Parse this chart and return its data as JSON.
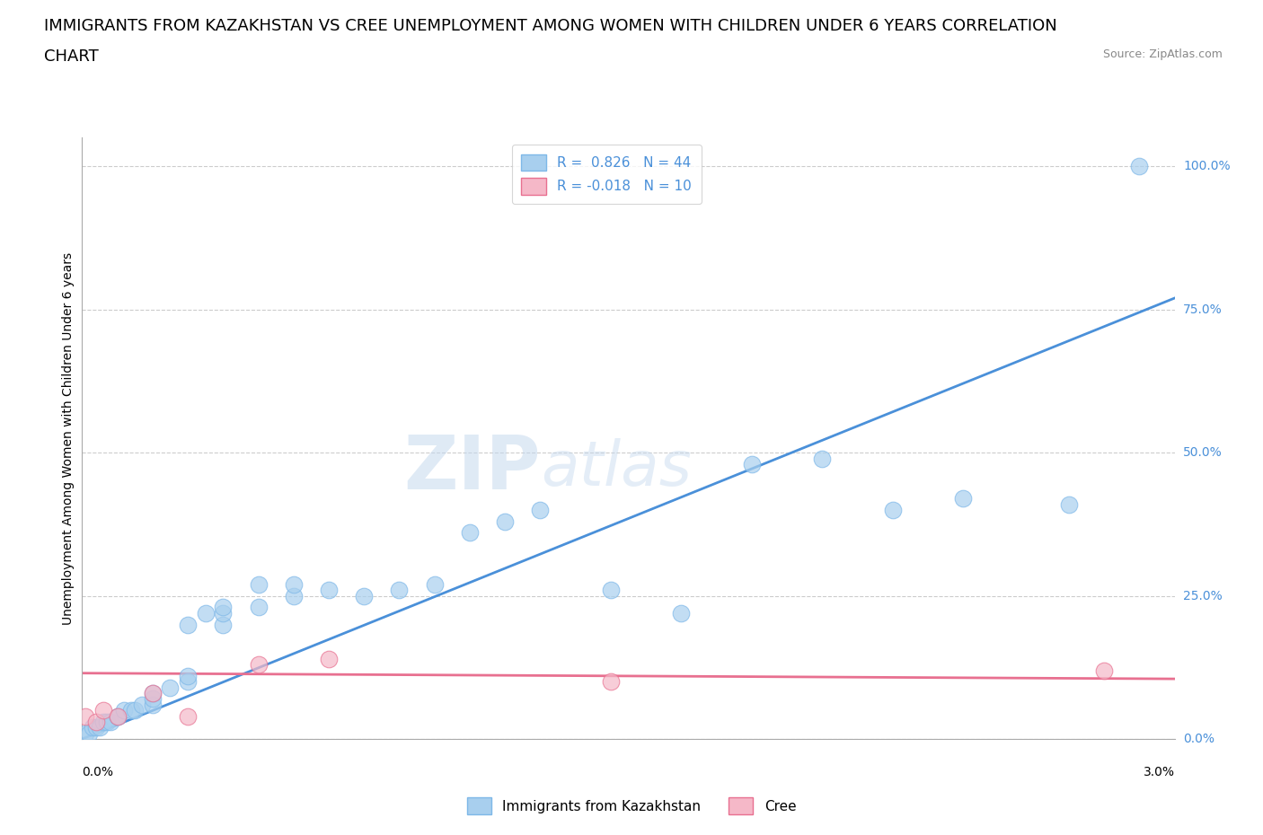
{
  "title_line1": "IMMIGRANTS FROM KAZAKHSTAN VS CREE UNEMPLOYMENT AMONG WOMEN WITH CHILDREN UNDER 6 YEARS CORRELATION",
  "title_line2": "CHART",
  "source": "Source: ZipAtlas.com",
  "ylabel": "Unemployment Among Women with Children Under 6 years",
  "kaz_color_fill": "#A8CFEE",
  "kaz_color_edge": "#7EB8E8",
  "kaz_line_color": "#4A90D9",
  "cree_color_fill": "#F5B8C8",
  "cree_color_edge": "#E87090",
  "cree_line_color": "#E87090",
  "kaz_R": "0.826",
  "kaz_N": "44",
  "cree_R": "-0.018",
  "cree_N": "10",
  "kaz_x": [
    0.0001,
    0.0002,
    0.0003,
    0.0004,
    0.0005,
    0.0006,
    0.0007,
    0.0008,
    0.001,
    0.001,
    0.0012,
    0.0014,
    0.0015,
    0.0017,
    0.002,
    0.002,
    0.002,
    0.0025,
    0.003,
    0.003,
    0.003,
    0.0035,
    0.004,
    0.004,
    0.004,
    0.005,
    0.005,
    0.006,
    0.006,
    0.007,
    0.008,
    0.009,
    0.01,
    0.011,
    0.012,
    0.013,
    0.015,
    0.017,
    0.019,
    0.021,
    0.023,
    0.025,
    0.028,
    0.03
  ],
  "kaz_y": [
    0.01,
    0.01,
    0.02,
    0.02,
    0.02,
    0.03,
    0.03,
    0.03,
    0.04,
    0.04,
    0.05,
    0.05,
    0.05,
    0.06,
    0.06,
    0.07,
    0.08,
    0.09,
    0.1,
    0.11,
    0.2,
    0.22,
    0.2,
    0.22,
    0.23,
    0.23,
    0.27,
    0.25,
    0.27,
    0.26,
    0.25,
    0.26,
    0.27,
    0.36,
    0.38,
    0.4,
    0.26,
    0.22,
    0.48,
    0.49,
    0.4,
    0.42,
    0.41,
    1.0
  ],
  "cree_x": [
    0.0001,
    0.0004,
    0.0006,
    0.001,
    0.002,
    0.003,
    0.005,
    0.007,
    0.015,
    0.029
  ],
  "cree_y": [
    0.04,
    0.03,
    0.05,
    0.04,
    0.08,
    0.04,
    0.13,
    0.14,
    0.1,
    0.12
  ],
  "kaz_trend_x": [
    0.0,
    0.031
  ],
  "kaz_trend_y": [
    0.0,
    0.77
  ],
  "cree_trend_x": [
    0.0,
    0.031
  ],
  "cree_trend_y": [
    0.115,
    0.105
  ],
  "xlim": [
    0.0,
    0.031
  ],
  "ylim": [
    0.0,
    1.05
  ],
  "yticks": [
    0.0,
    0.25,
    0.5,
    0.75,
    1.0
  ],
  "ytick_labels": [
    "0.0%",
    "25.0%",
    "50.0%",
    "75.0%",
    "100.0%"
  ],
  "grid_color": "#CCCCCC",
  "bg_color": "#FFFFFF",
  "title_fontsize": 13,
  "label_fontsize": 10,
  "legend_fontsize": 11
}
